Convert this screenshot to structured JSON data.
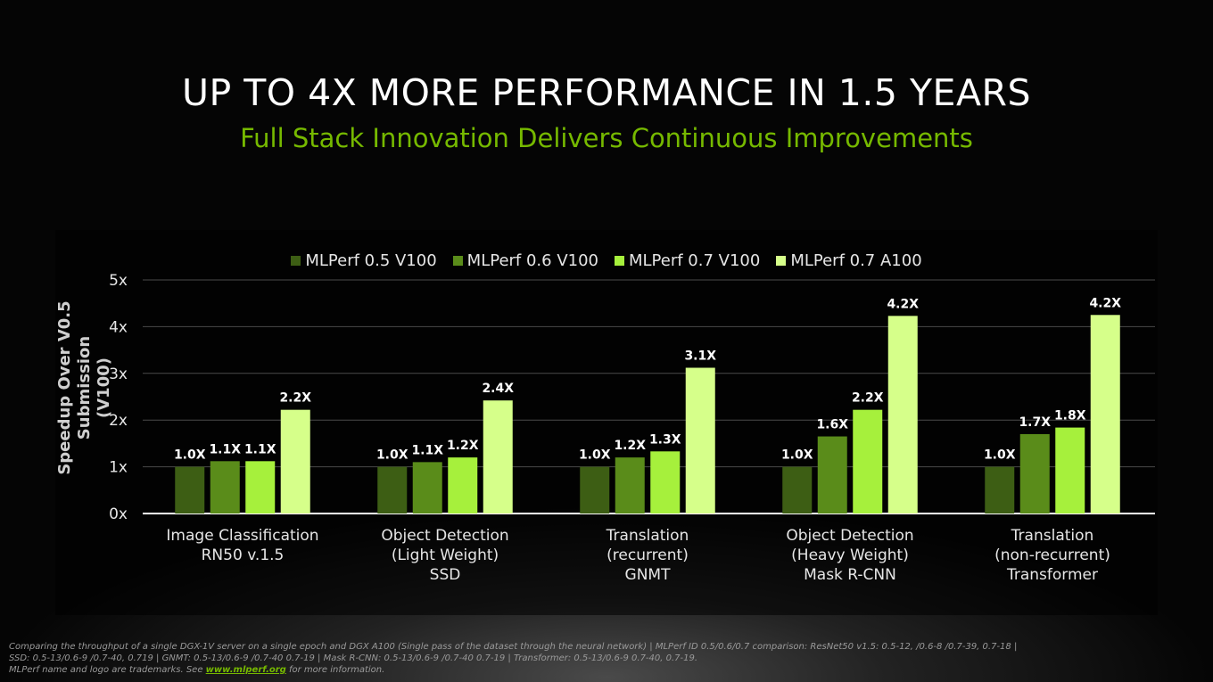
{
  "title": "UP TO 4X MORE PERFORMANCE IN 1.5 YEARS",
  "subtitle": "Full Stack Innovation Delivers Continuous Improvements",
  "footnote": {
    "line1": "Comparing the throughput of a single DGX-1V server on a single epoch and DGX A100 (Single pass of the dataset through the neural network) | MLPerf ID 0.5/0.6/0.7 comparison: ResNet50 v1.5: 0.5-12, /0.6-8 /0.7-39, 0.7-18  |",
    "line2": "SSD: 0.5-13/0.6-9 /0.7-40, 0.719 |  GNMT: 0.5-13/0.6-9 /0.7-40 0.7-19  |  Mask R-CNN: 0.5-13/0.6-9 /0.7-40 0.7-19 | Transformer: 0.5-13/0.6-9 0.7-40, 0.7-19.",
    "line3_prefix": "MLPerf name and logo are trademarks. See ",
    "link_text": "www.mlperf.org",
    "line3_suffix": " for more information."
  },
  "chart_data": {
    "type": "bar",
    "title": "UP TO 4X MORE PERFORMANCE IN 1.5 YEARS",
    "subtitle": "Full Stack Innovation Delivers Continuous Improvements",
    "ylabel_lines": [
      "Speedup Over V0.5 Submission",
      "(V100)"
    ],
    "xlabel": "",
    "ylim": [
      0,
      5
    ],
    "yticks": [
      0,
      1,
      2,
      3,
      4,
      5
    ],
    "ytick_labels": [
      "0x",
      "1x",
      "2x",
      "3x",
      "4x",
      "5x"
    ],
    "grid": true,
    "legend_position": "top-center",
    "categories": [
      [
        "Image Classification",
        "RN50 v.1.5"
      ],
      [
        "Object Detection",
        "(Light Weight)",
        "SSD"
      ],
      [
        "Translation",
        "(recurrent)",
        "GNMT"
      ],
      [
        "Object Detection",
        "(Heavy Weight)",
        "Mask R-CNN"
      ],
      [
        "Translation",
        "(non-recurrent)",
        "Transformer"
      ]
    ],
    "series": [
      {
        "name": "MLPerf 0.5 V100",
        "color": "#3d5e14",
        "values": [
          1.0,
          1.0,
          1.0,
          1.0,
          1.0
        ],
        "labels": [
          "1.0X",
          "1.0X",
          "1.0X",
          "1.0X",
          "1.0X"
        ]
      },
      {
        "name": "MLPerf 0.6 V100",
        "color": "#5a8c1a",
        "values": [
          1.12,
          1.1,
          1.2,
          1.65,
          1.7
        ],
        "labels": [
          "1.1X",
          "1.1X",
          "1.2X",
          "1.6X",
          "1.7X"
        ]
      },
      {
        "name": "MLPerf 0.7 V100",
        "color": "#a6f03c",
        "values": [
          1.12,
          1.2,
          1.33,
          2.22,
          1.84
        ],
        "labels": [
          "1.1X",
          "1.2X",
          "1.3X",
          "2.2X",
          "1.8X"
        ]
      },
      {
        "name": "MLPerf 0.7 A100",
        "color": "#d6ff8a",
        "values": [
          2.22,
          2.42,
          3.12,
          4.23,
          4.25
        ],
        "labels": [
          "2.2X",
          "2.4X",
          "3.1X",
          "4.2X",
          "4.2X"
        ]
      }
    ]
  }
}
